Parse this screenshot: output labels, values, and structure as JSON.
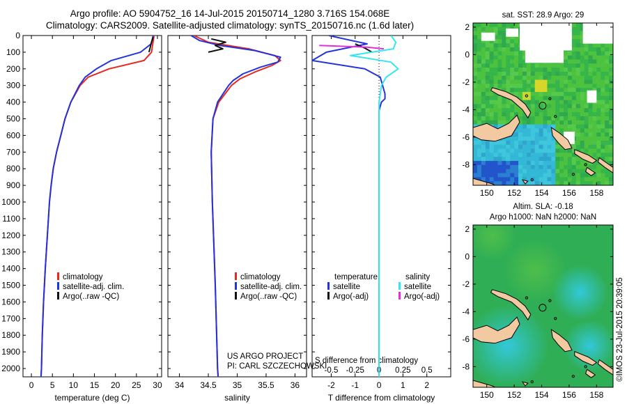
{
  "header": {
    "line1": "Argo profile: AO 5904752_16 14-Jul-2015 20150714_1280 3.716S 154.068E",
    "line2": "Climatology: CARS2009. Satellite-adjusted climatology: synTS_20150716.nc (1.6d later)"
  },
  "colors": {
    "climatology": "#e8281c",
    "satellite": "#2233dd",
    "argo": "#111111",
    "sat_salinity": "#33e6f0",
    "argo_salinity_adj": "#e62ed8"
  },
  "credits": {
    "project": "US ARGO PROJECT",
    "pi": "PI: CARL SZCZECHOWSKI"
  },
  "stamp": "©IMOS 23-Jul-2015 20:39:05",
  "chart_data": [
    {
      "type": "line",
      "name": "temperature-panel",
      "xlabel": "temperature (deg C)",
      "ylabel": "",
      "xlim": [
        -2,
        31
      ],
      "ylim": [
        2050,
        0
      ],
      "xticks": [
        "0",
        "5",
        "10",
        "15",
        "20",
        "25",
        "30"
      ],
      "xtick_values": [
        0,
        5,
        10,
        15,
        20,
        25,
        30
      ],
      "yticks": [
        "0",
        "100",
        "200",
        "300",
        "400",
        "500",
        "600",
        "700",
        "800",
        "900",
        "1000",
        "1100",
        "1200",
        "1300",
        "1400",
        "1500",
        "1600",
        "1700",
        "1800",
        "1900",
        "2000"
      ],
      "ytick_values": [
        0,
        100,
        200,
        300,
        400,
        500,
        600,
        700,
        800,
        900,
        1000,
        1100,
        1200,
        1300,
        1400,
        1500,
        1600,
        1700,
        1800,
        1900,
        2000
      ],
      "legend": [
        "climatology",
        "satellite-adj. clim.",
        "Argo(..raw -QC)"
      ],
      "series": [
        {
          "name": "climatology",
          "depth": [
            0,
            50,
            100,
            150,
            200,
            250,
            300,
            400,
            500,
            600,
            700,
            800,
            900,
            1000,
            1200,
            1400,
            1600,
            1800,
            2000,
            2050
          ],
          "values": [
            29.2,
            28.9,
            28.6,
            26.8,
            18.5,
            13.5,
            11.6,
            9.4,
            8.0,
            7.0,
            6.0,
            5.2,
            4.7,
            4.3,
            3.8,
            3.3,
            2.9,
            2.6,
            2.4,
            2.3
          ]
        },
        {
          "name": "satellite-adj. clim.",
          "depth": [
            0,
            50,
            100,
            150,
            200,
            250,
            300,
            400,
            500,
            600,
            700,
            800,
            900,
            1000,
            1200,
            1400,
            1600,
            1800,
            2000,
            2050
          ],
          "values": [
            29.0,
            28.5,
            26.0,
            19.0,
            15.5,
            12.8,
            11.4,
            9.4,
            8.0,
            7.0,
            6.0,
            5.2,
            4.7,
            4.3,
            3.8,
            3.3,
            2.9,
            2.6,
            2.4,
            2.3
          ]
        },
        {
          "name": "Argo(..raw -QC)",
          "depth": [
            10,
            25,
            40,
            60,
            80,
            100
          ],
          "values": [
            29.0,
            28.8,
            28.6,
            28.4,
            28.2,
            28.0
          ]
        }
      ]
    },
    {
      "type": "line",
      "name": "salinity-panel",
      "xlabel": "salinity",
      "xlim": [
        33.8,
        36.2
      ],
      "ylim": [
        2050,
        0
      ],
      "xticks": [
        "34",
        "34.5",
        "35",
        "35.5",
        "36"
      ],
      "xtick_values": [
        34,
        34.5,
        35,
        35.5,
        36
      ],
      "legend": [
        "climatology",
        "satellite-adj. clim.",
        "Argo(..raw -QC)"
      ],
      "series": [
        {
          "name": "climatology",
          "depth": [
            0,
            40,
            80,
            120,
            150,
            180,
            220,
            260,
            300,
            400,
            500,
            700,
            1000,
            1500,
            2000,
            2050
          ],
          "values": [
            34.25,
            34.5,
            35.2,
            35.65,
            35.75,
            35.6,
            35.3,
            35.05,
            34.9,
            34.68,
            34.58,
            34.55,
            34.57,
            34.62,
            34.66,
            34.67
          ]
        },
        {
          "name": "satellite-adj. clim.",
          "depth": [
            0,
            30,
            60,
            90,
            130,
            160,
            190,
            230,
            270,
            300,
            400,
            500,
            700,
            1000,
            1500,
            2000,
            2050
          ],
          "values": [
            34.2,
            34.35,
            34.7,
            35.3,
            35.75,
            35.7,
            35.4,
            35.1,
            34.93,
            34.85,
            34.66,
            34.58,
            34.55,
            34.57,
            34.62,
            34.66,
            34.67
          ]
        },
        {
          "name": "Argo(..raw -QC)",
          "depth": [
            20,
            40,
            60,
            80,
            100
          ],
          "values": [
            34.55,
            34.8,
            34.62,
            34.75,
            34.5
          ]
        }
      ]
    },
    {
      "type": "line",
      "name": "difference-panel",
      "xlabel": "T difference from climatology",
      "xlabel_top": "S difference from climatology",
      "xlim": [
        -2.8,
        3.0
      ],
      "ylim": [
        2050,
        0
      ],
      "xticks": [
        "-2",
        "-1",
        "0",
        "1",
        "2"
      ],
      "xtick_values": [
        -2,
        -1,
        0,
        1,
        2
      ],
      "sticks": [
        "-0.5",
        "-0.25",
        "0",
        "0.25",
        "0.5"
      ],
      "stick_positions": [
        -2,
        -1,
        0,
        1,
        2
      ],
      "legend": [
        "temperature",
        "satellite",
        "Argo(-adj)",
        "salinity",
        "satellite",
        "Argo(-adj)"
      ],
      "series": [
        {
          "name": "temperature satellite",
          "depth": [
            0,
            50,
            100,
            150,
            200,
            250,
            300,
            350,
            380,
            400,
            450,
            500,
            800,
            1200,
            1600,
            2050
          ],
          "values": [
            -2.1,
            -0.5,
            -2.2,
            -2.8,
            -0.6,
            0.05,
            0.15,
            0.25,
            0.25,
            0.1,
            0.0,
            0.0,
            0.0,
            0.0,
            0.0,
            0.0
          ]
        },
        {
          "name": "temperature Argo(-adj)",
          "depth": [
            50,
            75,
            100
          ],
          "values": [
            -1.0,
            -0.6,
            -0.3
          ]
        },
        {
          "name": "salinity satellite",
          "depth": [
            0,
            40,
            80,
            120,
            160,
            200,
            250,
            300,
            350,
            400,
            600,
            1000,
            1500,
            2050
          ],
          "values": [
            0.5,
            0.7,
            0.6,
            -1.2,
            0.5,
            0.8,
            0.3,
            0.1,
            0.05,
            0.0,
            0.0,
            0.0,
            0.0,
            0.0
          ]
        },
        {
          "name": "salinity Argo(-adj)",
          "depth": [
            60,
            65,
            70,
            80
          ],
          "values": [
            -2.5,
            -1.5,
            -0.5,
            0.2
          ]
        }
      ]
    },
    {
      "type": "heatmap",
      "name": "sst-map",
      "title": "sat. SST: 28.9 Argo: 29",
      "xticks": [
        "150",
        "152",
        "154",
        "156",
        "158"
      ],
      "xtick_values": [
        150,
        152,
        154,
        156,
        158
      ],
      "yticks": [
        "2",
        "0",
        "-2",
        "-4",
        "-6",
        "-8"
      ],
      "ytick_values": [
        2,
        0,
        -2,
        -4,
        -6,
        -8
      ],
      "xlim": [
        149,
        159.2
      ],
      "ylim": [
        -9.5,
        2.3
      ],
      "argo_position": [
        154.068,
        -3.716
      ]
    },
    {
      "type": "heatmap",
      "name": "sla-map",
      "title_line1": "Altim. SLA: -0.18",
      "title_line2": "Argo h1000: NaN h2000: NaN",
      "xticks": [
        "150",
        "152",
        "154",
        "156",
        "158"
      ],
      "xtick_values": [
        150,
        152,
        154,
        156,
        158
      ],
      "yticks": [
        "2",
        "0",
        "-2",
        "-4",
        "-6",
        "-8"
      ],
      "ytick_values": [
        2,
        0,
        -2,
        -4,
        -6,
        -8
      ],
      "xlim": [
        149,
        159.2
      ],
      "ylim": [
        -9.5,
        2.3
      ],
      "argo_position": [
        154.068,
        -3.716
      ]
    }
  ]
}
